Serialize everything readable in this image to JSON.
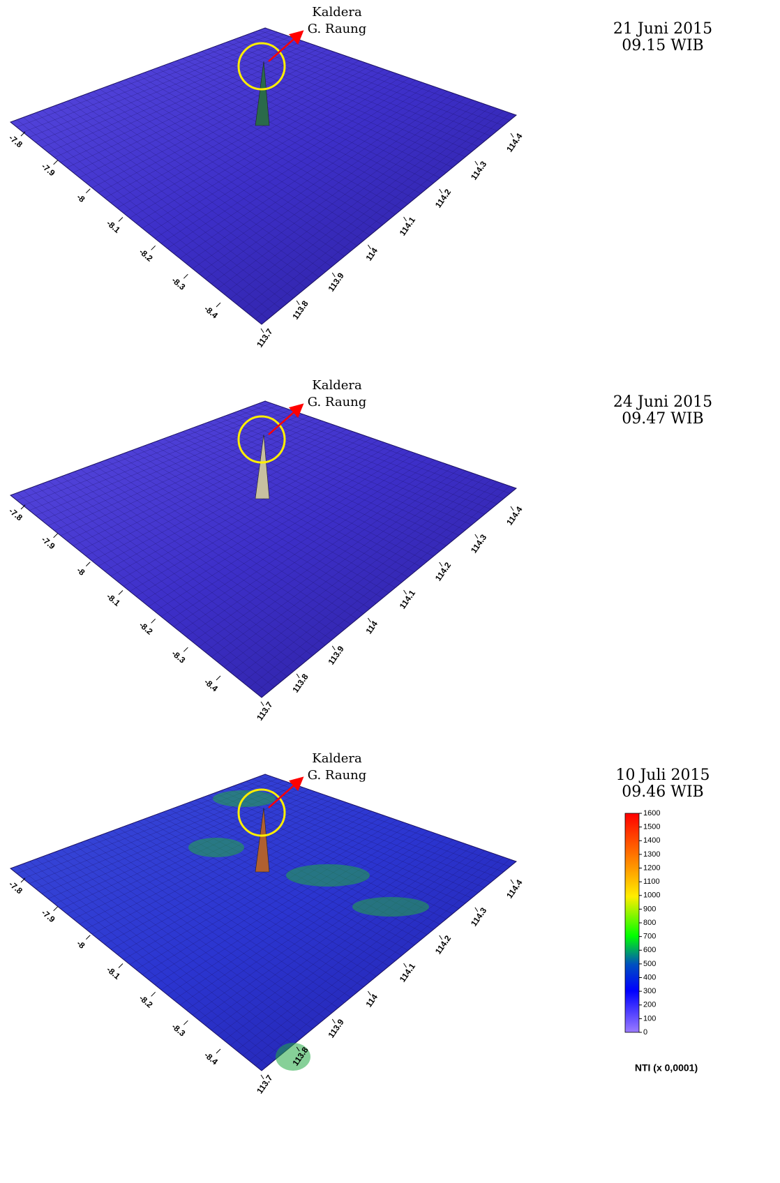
{
  "panels": [
    {
      "annotation": [
        "Kaldera",
        "G. Raung"
      ],
      "date": "21 Juni 2015",
      "time": "09.15 WIB",
      "lat_ticks": [
        -7.8,
        -7.9,
        -8,
        -8.1,
        -8.2,
        -8.3,
        -8.4
      ],
      "lon_ticks": [
        113.7,
        113.8,
        113.9,
        114,
        114.1,
        114.2,
        114.3,
        114.4
      ]
    },
    {
      "annotation": [
        "Kaldera",
        "G. Raung"
      ],
      "date": "24 Juni 2015",
      "time": "09.47 WIB",
      "lat_ticks": [
        -7.8,
        -7.9,
        -8,
        -8.1,
        -8.2,
        -8.3,
        -8.4
      ],
      "lon_ticks": [
        113.7,
        113.8,
        113.9,
        114,
        114.1,
        114.2,
        114.3,
        114.4
      ]
    },
    {
      "annotation": [
        "Kaldera",
        "G. Raung"
      ],
      "date": "10 Juli 2015",
      "time": "09.46 WIB",
      "lat_ticks": [
        -7.8,
        -7.9,
        -8,
        -8.1,
        -8.2,
        -8.3,
        -8.4
      ],
      "lon_ticks": [
        113.7,
        113.8,
        113.9,
        114,
        114.1,
        114.2,
        114.3,
        114.4
      ]
    }
  ],
  "colorbar": {
    "title": "NTI (x 0,0001)",
    "ticks": [
      0,
      100,
      200,
      300,
      400,
      500,
      600,
      700,
      800,
      900,
      1000,
      1100,
      1200,
      1300,
      1400,
      1500,
      1600
    ]
  }
}
